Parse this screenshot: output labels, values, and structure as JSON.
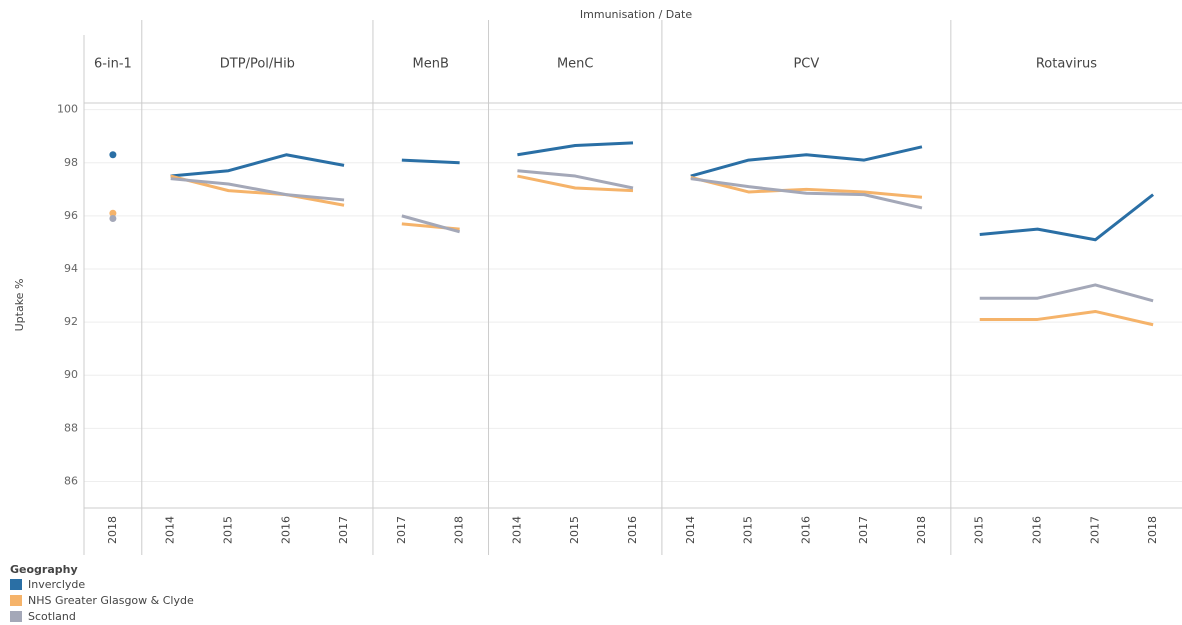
{
  "chart_data": {
    "type": "line",
    "x_label": "Immunisation / Date",
    "y_label": "Uptake %",
    "ylim": [
      85,
      100.25
    ],
    "yticks": [
      86,
      88,
      90,
      92,
      94,
      96,
      98,
      100
    ],
    "grid": true,
    "legend_title": "Geography",
    "series": [
      {
        "name": "Inverclyde",
        "color": "#2a6fa5"
      },
      {
        "name": "NHS Greater Glasgow & Clyde",
        "color": "#f5b36a"
      },
      {
        "name": "Scotland",
        "color": "#a4a8b8"
      }
    ],
    "panels": [
      {
        "name": "6-in-1",
        "categories": [
          "2018"
        ],
        "series": [
          {
            "values": [
              98.3
            ]
          },
          {
            "values": [
              96.1
            ]
          },
          {
            "values": [
              95.9
            ]
          }
        ]
      },
      {
        "name": "DTP/Pol/Hib",
        "categories": [
          "2014",
          "2015",
          "2016",
          "2017"
        ],
        "series": [
          {
            "values": [
              97.5,
              97.7,
              98.3,
              97.9
            ]
          },
          {
            "values": [
              97.5,
              96.95,
              96.8,
              96.4
            ]
          },
          {
            "values": [
              97.4,
              97.2,
              96.8,
              96.6
            ]
          }
        ]
      },
      {
        "name": "MenB",
        "categories": [
          "2017",
          "2018"
        ],
        "series": [
          {
            "values": [
              98.1,
              98.0
            ]
          },
          {
            "values": [
              95.7,
              95.5
            ]
          },
          {
            "values": [
              96.0,
              95.4
            ]
          }
        ]
      },
      {
        "name": "MenC",
        "categories": [
          "2014",
          "2015",
          "2016"
        ],
        "series": [
          {
            "values": [
              98.3,
              98.65,
              98.75
            ]
          },
          {
            "values": [
              97.5,
              97.05,
              96.95
            ]
          },
          {
            "values": [
              97.7,
              97.5,
              97.05
            ]
          }
        ]
      },
      {
        "name": "PCV",
        "categories": [
          "2014",
          "2015",
          "2016",
          "2017",
          "2018"
        ],
        "series": [
          {
            "values": [
              97.5,
              98.1,
              98.3,
              98.1,
              98.6
            ]
          },
          {
            "values": [
              97.45,
              96.9,
              97.0,
              96.9,
              96.7
            ]
          },
          {
            "values": [
              97.4,
              97.1,
              96.85,
              96.8,
              96.3
            ]
          }
        ]
      },
      {
        "name": "Rotavirus",
        "categories": [
          "2015",
          "2016",
          "2017",
          "2018"
        ],
        "series": [
          {
            "values": [
              95.3,
              95.5,
              95.1,
              96.8
            ]
          },
          {
            "values": [
              92.1,
              92.1,
              92.4,
              91.9
            ]
          },
          {
            "values": [
              92.9,
              92.9,
              93.4,
              92.8
            ]
          }
        ]
      }
    ]
  }
}
